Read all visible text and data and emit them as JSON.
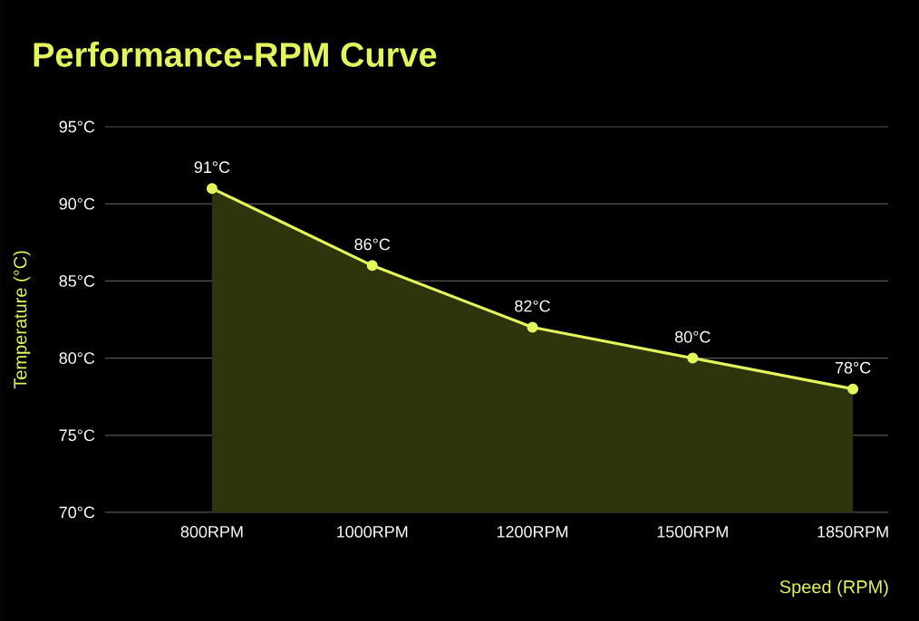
{
  "chart_data": {
    "type": "area",
    "title": "Performance-RPM Curve",
    "xlabel": "Speed (RPM)",
    "ylabel": "Temperature (°C)",
    "categories": [
      "800RPM",
      "1000RPM",
      "1200RPM",
      "1500RPM",
      "1850RPM"
    ],
    "values": [
      91,
      86,
      82,
      80,
      78
    ],
    "value_labels": [
      "91°C",
      "86°C",
      "82°C",
      "80°C",
      "78°C"
    ],
    "color": "#e4f55c",
    "ylim": [
      70,
      95
    ],
    "yticks": [
      {
        "value": 70,
        "label": "70°C"
      },
      {
        "value": 75,
        "label": "75°C"
      },
      {
        "value": 80,
        "label": "80°C"
      },
      {
        "value": 85,
        "label": "85°C"
      },
      {
        "value": 90,
        "label": "90°C"
      },
      {
        "value": 95,
        "label": "95°C"
      }
    ],
    "grid": "y",
    "marker": "circle",
    "line_style": "solid"
  }
}
